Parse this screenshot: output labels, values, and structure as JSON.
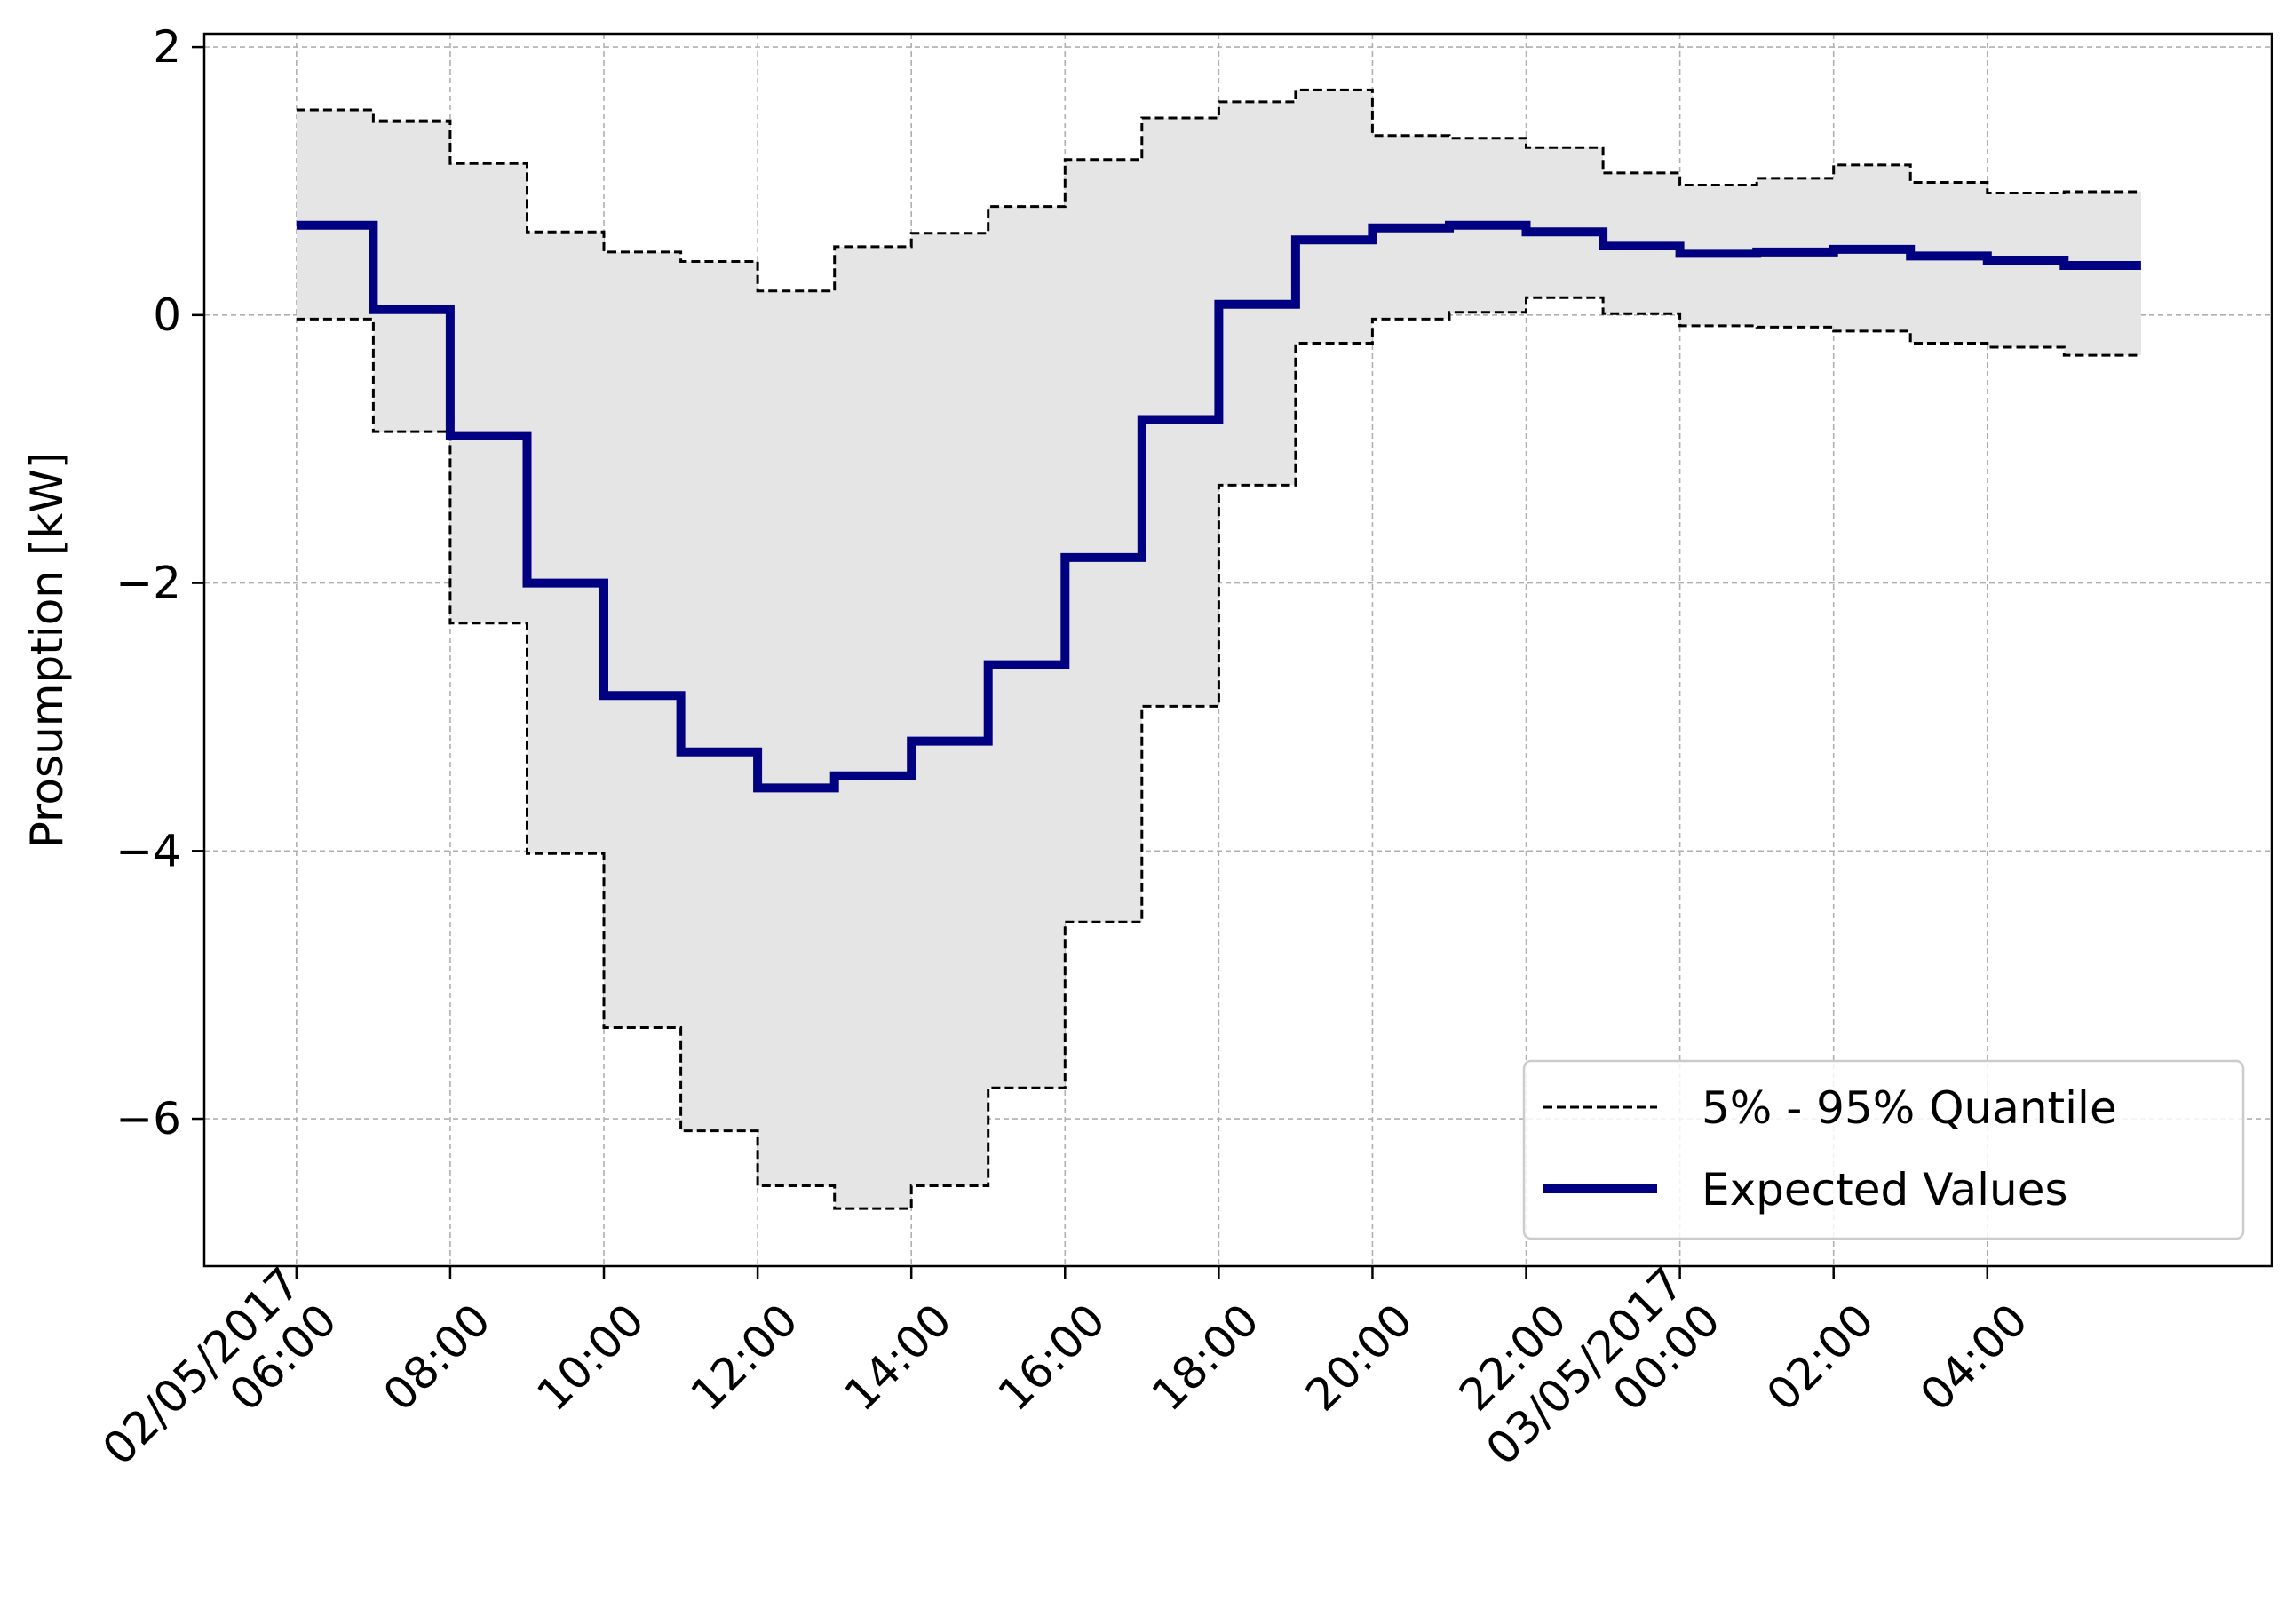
{
  "chart_data": {
    "type": "line",
    "step": "post",
    "ylabel": "Prosumption [kW]",
    "ylim": [
      -7.1,
      2.1
    ],
    "yticks": [
      2,
      0,
      -2,
      -4,
      -6
    ],
    "ytick_labels": [
      "2",
      "0",
      "−2",
      "−4",
      "−6"
    ],
    "xticks": [
      {
        "t": 0,
        "lines": [
          "02/05/2017",
          "06:00"
        ]
      },
      {
        "t": 2,
        "lines": [
          "08:00"
        ]
      },
      {
        "t": 4,
        "lines": [
          "10:00"
        ]
      },
      {
        "t": 6,
        "lines": [
          "12:00"
        ]
      },
      {
        "t": 8,
        "lines": [
          "14:00"
        ]
      },
      {
        "t": 10,
        "lines": [
          "16:00"
        ]
      },
      {
        "t": 12,
        "lines": [
          "18:00"
        ]
      },
      {
        "t": 14,
        "lines": [
          "20:00"
        ]
      },
      {
        "t": 16,
        "lines": [
          "22:00"
        ]
      },
      {
        "t": 18,
        "lines": [
          "03/05/2017",
          "00:00"
        ]
      },
      {
        "t": 20,
        "lines": [
          "02:00"
        ]
      },
      {
        "t": 22,
        "lines": [
          "04:00"
        ]
      }
    ],
    "xlim": [
      -1.2,
      25.7
    ],
    "grid": true,
    "legend_position": "lower-right",
    "series": [
      {
        "name": "5% - 95% Quantile",
        "style": "dashed",
        "color": "#000000",
        "upper": [
          1.53,
          1.45,
          1.13,
          0.62,
          0.47,
          0.4,
          0.18,
          0.51,
          0.61,
          0.81,
          1.16,
          1.47,
          1.59,
          1.68,
          1.34,
          1.32,
          1.25,
          1.06,
          0.97,
          1.02,
          1.12,
          0.99,
          0.91,
          0.92
        ],
        "lower": [
          -0.03,
          -0.87,
          -2.3,
          -4.02,
          -5.32,
          -6.09,
          -6.5,
          -6.67,
          -6.5,
          -5.77,
          -4.53,
          -2.92,
          -1.27,
          -0.21,
          -0.03,
          0.02,
          0.13,
          0.01,
          -0.08,
          -0.09,
          -0.12,
          -0.21,
          -0.24,
          -0.3
        ]
      },
      {
        "name": "Expected Values",
        "style": "solid",
        "color": "#000080",
        "values": [
          0.67,
          0.04,
          -0.9,
          -2.0,
          -2.84,
          -3.26,
          -3.53,
          -3.44,
          -3.18,
          -2.61,
          -1.81,
          -0.78,
          0.08,
          0.56,
          0.65,
          0.67,
          0.62,
          0.52,
          0.46,
          0.47,
          0.49,
          0.44,
          0.41,
          0.37
        ]
      }
    ],
    "colors": {
      "band_fill": "#e5e5e5",
      "grid": "#b0b0b0",
      "frame": "#000000"
    }
  }
}
